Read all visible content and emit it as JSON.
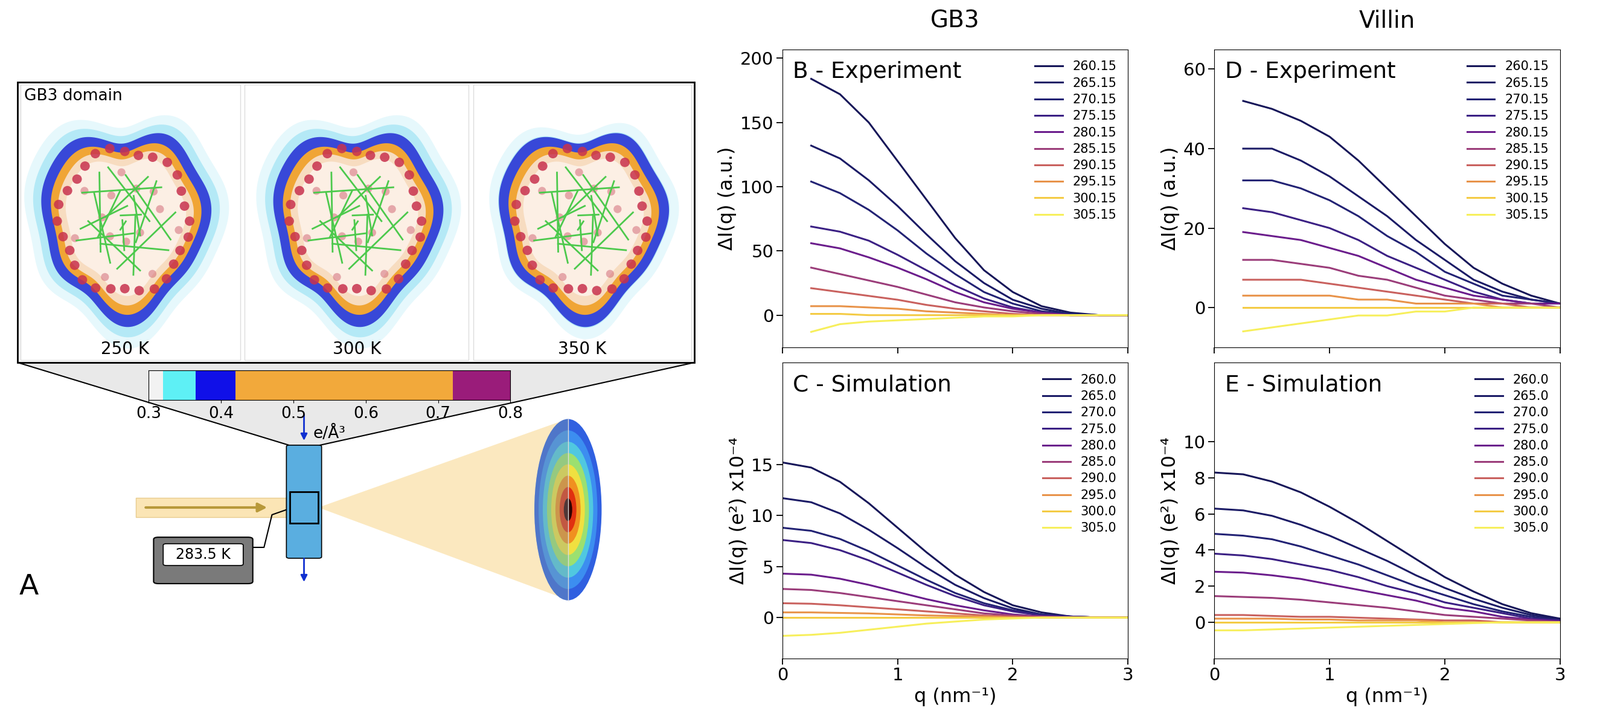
{
  "column_titles": [
    "GB3",
    "Villin"
  ],
  "chart_data": [
    {
      "type": "line",
      "title": "B - Experiment",
      "y_label": "ΔI(q) (a.u.)",
      "tick_labels": "y",
      "xlim": [
        0,
        3
      ],
      "xticks": [
        0,
        1,
        2,
        3
      ],
      "ylim": [
        -25,
        207
      ],
      "yticks": [
        0,
        50,
        100,
        150,
        200
      ],
      "legend": "upper right",
      "x": [
        0.25,
        0.5,
        0.75,
        1.0,
        1.25,
        1.5,
        1.75,
        2.0,
        2.25,
        2.5,
        2.75,
        3.0
      ],
      "series": [
        {
          "name": "260.15",
          "color": "#161659",
          "values": [
            184,
            172,
            150,
            120,
            90,
            60,
            35,
            18,
            7,
            2,
            0,
            0
          ]
        },
        {
          "name": "265.15",
          "color": "#1b1b66",
          "values": [
            132,
            122,
            105,
            85,
            63,
            42,
            25,
            12,
            5,
            1,
            0,
            0
          ]
        },
        {
          "name": "270.15",
          "color": "#222274",
          "values": [
            104,
            95,
            82,
            66,
            48,
            32,
            18,
            9,
            3,
            1,
            0,
            0
          ]
        },
        {
          "name": "275.15",
          "color": "#3b2084",
          "values": [
            69,
            65,
            58,
            47,
            35,
            23,
            13,
            6,
            2,
            0,
            0,
            0
          ]
        },
        {
          "name": "280.15",
          "color": "#6b1d8c",
          "values": [
            56,
            52,
            45,
            37,
            28,
            18,
            10,
            5,
            2,
            0,
            0,
            0
          ]
        },
        {
          "name": "285.15",
          "color": "#9b3d7a",
          "values": [
            37,
            32,
            27,
            22,
            16,
            10,
            6,
            3,
            1,
            0,
            0,
            0
          ]
        },
        {
          "name": "290.15",
          "color": "#c9615e",
          "values": [
            21,
            18,
            15,
            12,
            8,
            5,
            3,
            1,
            0,
            0,
            0,
            0
          ]
        },
        {
          "name": "295.15",
          "color": "#e8934a",
          "values": [
            7,
            7,
            6,
            5,
            3,
            2,
            1,
            0,
            0,
            0,
            0,
            0
          ]
        },
        {
          "name": "300.15",
          "color": "#f4cb45",
          "values": [
            1,
            1,
            0,
            0,
            0,
            0,
            0,
            0,
            0,
            0,
            0,
            0
          ]
        },
        {
          "name": "305.15",
          "color": "#f7ef5c",
          "values": [
            -13,
            -7,
            -5,
            -4,
            -3,
            -2,
            -1,
            -1,
            0,
            0,
            0,
            0
          ]
        }
      ]
    },
    {
      "type": "line",
      "title": "C - Simulation",
      "y_label": "ΔI(q) (e²) x10⁻⁴",
      "x_label": "q (nm⁻¹)",
      "xlim": [
        0,
        3
      ],
      "xticks": [
        0,
        1,
        2,
        3
      ],
      "ylim": [
        -4,
        25
      ],
      "yticks": [
        0,
        5,
        10,
        15
      ],
      "legend": "upper right",
      "x": [
        0,
        0.25,
        0.5,
        0.75,
        1.0,
        1.25,
        1.5,
        1.75,
        2.0,
        2.25,
        2.5,
        2.75,
        3.0
      ],
      "series": [
        {
          "name": "260.0",
          "color": "#161659",
          "values": [
            15.2,
            14.7,
            13.3,
            11.2,
            8.8,
            6.4,
            4.2,
            2.5,
            1.2,
            0.5,
            0.1,
            0,
            0
          ]
        },
        {
          "name": "265.0",
          "color": "#1b1b66",
          "values": [
            11.7,
            11.3,
            10.2,
            8.6,
            6.8,
            4.9,
            3.2,
            1.9,
            0.9,
            0.3,
            0.1,
            0,
            0
          ]
        },
        {
          "name": "270.0",
          "color": "#222274",
          "values": [
            8.8,
            8.5,
            7.7,
            6.5,
            5.1,
            3.7,
            2.4,
            1.4,
            0.7,
            0.3,
            0.1,
            0,
            0
          ]
        },
        {
          "name": "275.0",
          "color": "#3b2084",
          "values": [
            7.6,
            7.3,
            6.6,
            5.6,
            4.4,
            3.2,
            2.1,
            1.2,
            0.6,
            0.2,
            0.1,
            0,
            0
          ]
        },
        {
          "name": "280.0",
          "color": "#6b1d8c",
          "values": [
            4.3,
            4.2,
            3.8,
            3.2,
            2.5,
            1.8,
            1.2,
            0.7,
            0.3,
            0.1,
            0,
            0,
            0
          ]
        },
        {
          "name": "285.0",
          "color": "#9b3d7a",
          "values": [
            2.8,
            2.7,
            2.4,
            2.0,
            1.6,
            1.2,
            0.8,
            0.4,
            0.2,
            0.1,
            0,
            0,
            0
          ]
        },
        {
          "name": "290.0",
          "color": "#c9615e",
          "values": [
            1.4,
            1.35,
            1.2,
            1.0,
            0.8,
            0.6,
            0.4,
            0.2,
            0.1,
            0,
            0,
            0,
            0
          ]
        },
        {
          "name": "295.0",
          "color": "#e8934a",
          "values": [
            0.5,
            0.5,
            0.45,
            0.4,
            0.3,
            0.2,
            0.15,
            0.1,
            0,
            0,
            0,
            0,
            0
          ]
        },
        {
          "name": "300.0",
          "color": "#f4cb45",
          "values": [
            0,
            0,
            0,
            0,
            0,
            0,
            0,
            0,
            0,
            0,
            0,
            0,
            0
          ]
        },
        {
          "name": "305.0",
          "color": "#f7ef5c",
          "values": [
            -1.8,
            -1.7,
            -1.5,
            -1.2,
            -0.9,
            -0.6,
            -0.4,
            -0.2,
            -0.1,
            0,
            0,
            0,
            0
          ]
        }
      ]
    },
    {
      "type": "line",
      "title": "D - Experiment",
      "y_label": "ΔI(q) (a.u.)",
      "tick_labels": "y",
      "xlim": [
        0,
        3
      ],
      "xticks": [
        0,
        1,
        2,
        3
      ],
      "ylim": [
        -10,
        65
      ],
      "yticks": [
        0,
        20,
        40,
        60
      ],
      "legend": "upper right",
      "x": [
        0.25,
        0.5,
        0.75,
        1.0,
        1.25,
        1.5,
        1.75,
        2.0,
        2.25,
        2.5,
        2.75,
        3.0
      ],
      "series": [
        {
          "name": "260.15",
          "color": "#161659",
          "values": [
            52,
            50,
            47,
            43,
            37,
            30,
            23,
            16,
            10,
            6,
            3,
            1
          ]
        },
        {
          "name": "265.15",
          "color": "#1b1b66",
          "values": [
            40,
            40,
            37,
            33,
            28,
            23,
            17,
            12,
            7,
            4,
            2,
            1
          ]
        },
        {
          "name": "270.15",
          "color": "#222274",
          "values": [
            32,
            32,
            30,
            27,
            23,
            18,
            14,
            9,
            6,
            3,
            2,
            1
          ]
        },
        {
          "name": "275.15",
          "color": "#3b2084",
          "values": [
            25,
            24,
            22,
            20,
            17,
            13,
            10,
            7,
            4,
            2,
            1,
            1
          ]
        },
        {
          "name": "280.15",
          "color": "#6b1d8c",
          "values": [
            19,
            18,
            17,
            15,
            13,
            10,
            7,
            5,
            3,
            2,
            1,
            1
          ]
        },
        {
          "name": "285.15",
          "color": "#9b3d7a",
          "values": [
            12,
            12,
            11,
            10,
            8,
            7,
            5,
            3,
            2,
            1,
            1,
            0
          ]
        },
        {
          "name": "290.15",
          "color": "#c9615e",
          "values": [
            7,
            7,
            7,
            6,
            5,
            4,
            3,
            2,
            1,
            1,
            0,
            0
          ]
        },
        {
          "name": "295.15",
          "color": "#e8934a",
          "values": [
            3,
            3,
            3,
            3,
            2,
            2,
            1,
            1,
            1,
            0,
            0,
            0
          ]
        },
        {
          "name": "300.15",
          "color": "#f4cb45",
          "values": [
            0,
            0,
            0,
            0,
            0,
            0,
            0,
            0,
            0,
            0,
            0,
            0
          ]
        },
        {
          "name": "305.15",
          "color": "#f7ef5c",
          "values": [
            -6,
            -5,
            -4,
            -3,
            -2,
            -2,
            -1,
            -1,
            0,
            0,
            0,
            0
          ]
        }
      ]
    },
    {
      "type": "line",
      "title": "E - Simulation",
      "y_label": "ΔI(q) (e²) x10⁻⁴",
      "x_label": "q (nm⁻¹)",
      "xlim": [
        0,
        3
      ],
      "xticks": [
        0,
        1,
        2,
        3
      ],
      "ylim": [
        -2,
        14.4
      ],
      "yticks": [
        0,
        2,
        4,
        6,
        8,
        10
      ],
      "legend": "upper right",
      "x": [
        0,
        0.25,
        0.5,
        0.75,
        1.0,
        1.25,
        1.5,
        1.75,
        2.0,
        2.25,
        2.5,
        2.75,
        3.0
      ],
      "series": [
        {
          "name": "260.0",
          "color": "#161659",
          "values": [
            8.3,
            8.2,
            7.8,
            7.2,
            6.4,
            5.5,
            4.5,
            3.5,
            2.5,
            1.7,
            1.0,
            0.5,
            0.2
          ]
        },
        {
          "name": "265.0",
          "color": "#1b1b66",
          "values": [
            6.3,
            6.2,
            5.9,
            5.4,
            4.8,
            4.1,
            3.4,
            2.6,
            1.9,
            1.3,
            0.8,
            0.4,
            0.15
          ]
        },
        {
          "name": "270.0",
          "color": "#222274",
          "values": [
            4.9,
            4.8,
            4.6,
            4.2,
            3.7,
            3.2,
            2.6,
            2.0,
            1.5,
            1.0,
            0.6,
            0.3,
            0.1
          ]
        },
        {
          "name": "275.0",
          "color": "#3b2084",
          "values": [
            3.8,
            3.7,
            3.5,
            3.2,
            2.9,
            2.5,
            2.0,
            1.6,
            1.1,
            0.8,
            0.5,
            0.2,
            0.1
          ]
        },
        {
          "name": "280.0",
          "color": "#6b1d8c",
          "values": [
            2.8,
            2.75,
            2.6,
            2.4,
            2.1,
            1.8,
            1.5,
            1.2,
            0.8,
            0.6,
            0.3,
            0.15,
            0.05
          ]
        },
        {
          "name": "285.0",
          "color": "#9b3d7a",
          "values": [
            1.45,
            1.4,
            1.35,
            1.25,
            1.1,
            0.95,
            0.8,
            0.6,
            0.4,
            0.3,
            0.2,
            0.1,
            0
          ]
        },
        {
          "name": "290.0",
          "color": "#c9615e",
          "values": [
            0.4,
            0.4,
            0.35,
            0.3,
            0.3,
            0.25,
            0.2,
            0.15,
            0.1,
            0.1,
            0,
            0,
            0
          ]
        },
        {
          "name": "295.0",
          "color": "#e8934a",
          "values": [
            0.2,
            0.2,
            0.2,
            0.15,
            0.15,
            0.1,
            0.1,
            0.1,
            0,
            0,
            0,
            0,
            0
          ]
        },
        {
          "name": "300.0",
          "color": "#f4cb45",
          "values": [
            0,
            0,
            0,
            0,
            0,
            0,
            0,
            0,
            0,
            0,
            0,
            0,
            0
          ]
        },
        {
          "name": "305.0",
          "color": "#f7ef5c",
          "values": [
            -0.45,
            -0.45,
            -0.4,
            -0.35,
            -0.3,
            -0.25,
            -0.2,
            -0.15,
            -0.1,
            -0.05,
            0,
            0,
            0
          ]
        }
      ]
    }
  ],
  "diagram": {
    "panel_label": "A",
    "title": "GB3 domain",
    "temperatures": [
      "250 K",
      "300 K",
      "350 K"
    ],
    "thermostat": "283.5 K",
    "colorbar": {
      "label": "e/Å³",
      "range": [
        0.3,
        0.8
      ],
      "ticks": [
        0.3,
        0.4,
        0.5,
        0.6,
        0.7,
        0.8
      ],
      "bounds": [
        0.3,
        0.32,
        0.365,
        0.42,
        0.72,
        0.8
      ],
      "colors": [
        "#f2f2f2",
        "#5ef0f5",
        "#1010e8",
        "#f2a93b",
        "#9a1c7a"
      ]
    }
  }
}
